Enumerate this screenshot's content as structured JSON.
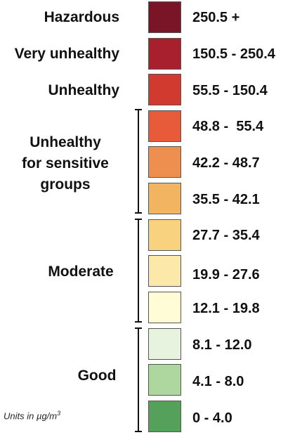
{
  "levels": [
    {
      "category": "Hazardous",
      "range": "250.5 +",
      "color": "#7A1527"
    },
    {
      "category": "Very unhealthy",
      "range": "150.5 - 250.4",
      "color": "#A8202D"
    },
    {
      "category": "Unhealthy",
      "range": "55.5 - 150.4",
      "color": "#D13A2E"
    },
    {
      "category": "Unhealthy for sensitive groups",
      "range": "48.8 -  55.4",
      "color": "#E85B3A"
    },
    {
      "category": "Unhealthy for sensitive groups",
      "range": "42.2 - 48.7",
      "color": "#EE8F50"
    },
    {
      "category": "Unhealthy for sensitive groups",
      "range": "35.5 - 42.1",
      "color": "#F3B462"
    },
    {
      "category": "Moderate",
      "range": "27.7 - 35.4",
      "color": "#F8D27E"
    },
    {
      "category": "Moderate",
      "range": "19.9 - 27.6",
      "color": "#FCE8A8"
    },
    {
      "category": "Moderate",
      "range": "12.1 - 19.8",
      "color": "#FFFCD6"
    },
    {
      "category": "Good",
      "range": "8.1 - 12.0",
      "color": "#E7F2DF"
    },
    {
      "category": "Good",
      "range": "4.1 - 8.0",
      "color": "#AED7A0"
    },
    {
      "category": "Good",
      "range": "0 - 4.0",
      "color": "#55A05A"
    }
  ],
  "labels": {
    "hazardous": "Hazardous",
    "very_unhealthy": "Very unhealthy",
    "unhealthy": "Unhealthy",
    "sensitive_line1": "Unhealthy",
    "sensitive_line2": "for sensitive",
    "sensitive_line3": "groups",
    "moderate": "Moderate",
    "good": "Good"
  },
  "units": {
    "prefix": "Units in µg/m",
    "superscript": "3"
  }
}
